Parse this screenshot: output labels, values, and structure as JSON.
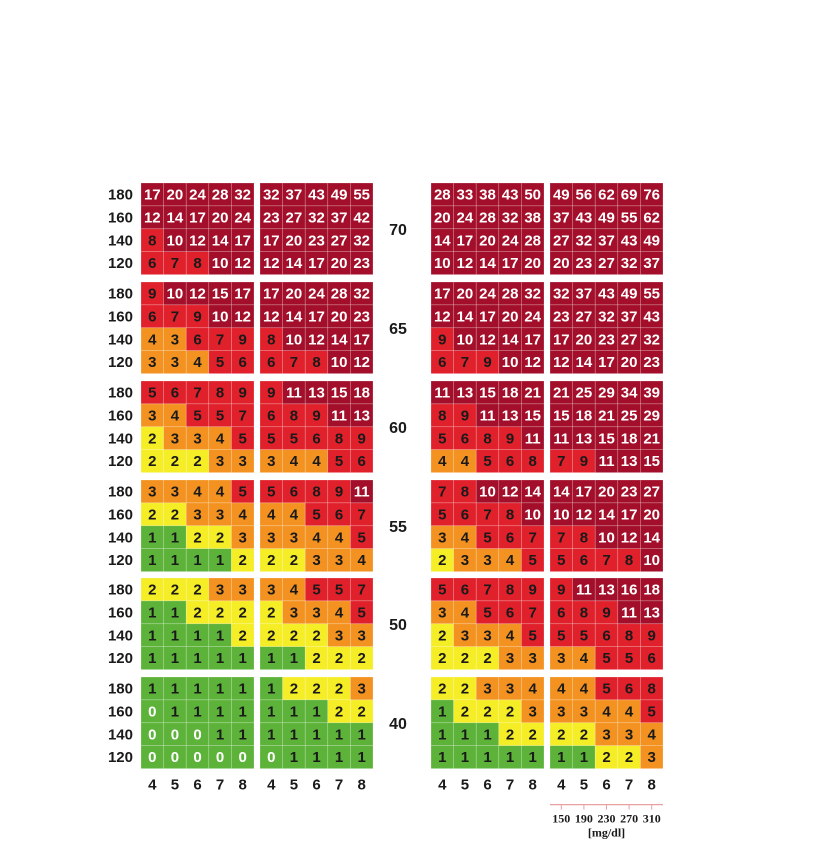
{
  "chart_data": {
    "type": "heatmap",
    "colors": {
      "green": "#5db33a",
      "yellow": "#f5ed25",
      "orange": "#f39220",
      "red": "#e0202b",
      "darkred": "#a30f2a",
      "text_dark": "#1a1a1a",
      "text_light": "#ffffff",
      "axis_line": "#e8a0a0"
    },
    "age_labels": [
      "70",
      "65",
      "60",
      "55",
      "50",
      "40"
    ],
    "bp_labels": [
      "180",
      "160",
      "140",
      "120"
    ],
    "x_labels": [
      "4",
      "5",
      "6",
      "7",
      "8"
    ],
    "chol_labels": [
      "150",
      "190",
      "230",
      "270",
      "310"
    ],
    "unit_label": "[mg/dl]",
    "panels": [
      {
        "rows": [
          {
            "age": "70",
            "grid": [
              [
                17,
                20,
                24,
                28,
                32
              ],
              [
                12,
                14,
                17,
                20,
                24
              ],
              [
                8,
                10,
                12,
                14,
                17
              ],
              [
                6,
                7,
                8,
                10,
                12
              ]
            ]
          },
          {
            "age": "65",
            "grid": [
              [
                9,
                10,
                12,
                15,
                17
              ],
              [
                6,
                7,
                9,
                10,
                12
              ],
              [
                4,
                3,
                6,
                7,
                9
              ],
              [
                3,
                3,
                4,
                5,
                6
              ]
            ]
          },
          {
            "age": "60",
            "grid": [
              [
                5,
                6,
                7,
                8,
                9
              ],
              [
                3,
                4,
                5,
                5,
                7
              ],
              [
                2,
                3,
                3,
                4,
                5
              ],
              [
                2,
                2,
                2,
                3,
                3
              ]
            ]
          },
          {
            "age": "55",
            "grid": [
              [
                3,
                3,
                4,
                4,
                5
              ],
              [
                2,
                2,
                3,
                3,
                4
              ],
              [
                1,
                1,
                2,
                2,
                3
              ],
              [
                1,
                1,
                1,
                1,
                2
              ]
            ]
          },
          {
            "age": "50",
            "grid": [
              [
                2,
                2,
                2,
                3,
                3
              ],
              [
                1,
                1,
                2,
                2,
                2
              ],
              [
                1,
                1,
                1,
                1,
                2
              ],
              [
                1,
                1,
                1,
                1,
                1
              ]
            ]
          },
          {
            "age": "40",
            "grid": [
              [
                1,
                1,
                1,
                1,
                1
              ],
              [
                0,
                1,
                1,
                1,
                1
              ],
              [
                0,
                0,
                0,
                1,
                1
              ],
              [
                0,
                0,
                0,
                0,
                0
              ]
            ]
          }
        ]
      },
      {
        "rows": [
          {
            "age": "70",
            "grid": [
              [
                32,
                37,
                43,
                49,
                55
              ],
              [
                23,
                27,
                32,
                37,
                42
              ],
              [
                17,
                20,
                23,
                27,
                32
              ],
              [
                12,
                14,
                17,
                20,
                23
              ]
            ]
          },
          {
            "age": "65",
            "grid": [
              [
                17,
                20,
                24,
                28,
                32
              ],
              [
                12,
                14,
                17,
                20,
                23
              ],
              [
                8,
                10,
                12,
                14,
                17
              ],
              [
                6,
                7,
                8,
                10,
                12
              ]
            ]
          },
          {
            "age": "60",
            "grid": [
              [
                9,
                11,
                13,
                15,
                18
              ],
              [
                6,
                8,
                9,
                11,
                13
              ],
              [
                5,
                5,
                6,
                8,
                9
              ],
              [
                3,
                4,
                4,
                5,
                6
              ]
            ]
          },
          {
            "age": "55",
            "grid": [
              [
                5,
                6,
                8,
                9,
                11
              ],
              [
                4,
                4,
                5,
                6,
                7
              ],
              [
                3,
                3,
                4,
                4,
                5
              ],
              [
                2,
                2,
                3,
                3,
                4
              ]
            ]
          },
          {
            "age": "50",
            "grid": [
              [
                3,
                4,
                5,
                5,
                7
              ],
              [
                2,
                3,
                3,
                4,
                5
              ],
              [
                2,
                2,
                2,
                3,
                3
              ],
              [
                1,
                1,
                2,
                2,
                2
              ]
            ]
          },
          {
            "age": "40",
            "grid": [
              [
                1,
                2,
                2,
                2,
                3
              ],
              [
                1,
                1,
                1,
                2,
                2
              ],
              [
                1,
                1,
                1,
                1,
                1
              ],
              [
                0,
                1,
                1,
                1,
                1
              ]
            ]
          }
        ]
      },
      {
        "rows": [
          {
            "age": "70",
            "grid": [
              [
                28,
                33,
                38,
                43,
                50
              ],
              [
                20,
                24,
                28,
                32,
                38
              ],
              [
                14,
                17,
                20,
                24,
                28
              ],
              [
                10,
                12,
                14,
                17,
                20
              ]
            ]
          },
          {
            "age": "65",
            "grid": [
              [
                17,
                20,
                24,
                28,
                32
              ],
              [
                12,
                14,
                17,
                20,
                24
              ],
              [
                9,
                10,
                12,
                14,
                17
              ],
              [
                6,
                7,
                9,
                10,
                12
              ]
            ]
          },
          {
            "age": "60",
            "grid": [
              [
                11,
                13,
                15,
                18,
                21
              ],
              [
                8,
                9,
                11,
                13,
                15
              ],
              [
                5,
                6,
                8,
                9,
                11
              ],
              [
                4,
                4,
                5,
                6,
                8
              ]
            ]
          },
          {
            "age": "55",
            "grid": [
              [
                7,
                8,
                10,
                12,
                14
              ],
              [
                5,
                6,
                7,
                8,
                10
              ],
              [
                3,
                4,
                5,
                6,
                7
              ],
              [
                2,
                3,
                3,
                4,
                5
              ]
            ]
          },
          {
            "age": "50",
            "grid": [
              [
                5,
                6,
                7,
                8,
                9
              ],
              [
                3,
                4,
                5,
                6,
                7
              ],
              [
                2,
                3,
                3,
                4,
                5
              ],
              [
                2,
                2,
                2,
                3,
                3
              ]
            ]
          },
          {
            "age": "40",
            "grid": [
              [
                2,
                2,
                3,
                3,
                4
              ],
              [
                1,
                2,
                2,
                2,
                3
              ],
              [
                1,
                1,
                1,
                2,
                2
              ],
              [
                1,
                1,
                1,
                1,
                1
              ]
            ]
          }
        ]
      },
      {
        "rows": [
          {
            "age": "70",
            "grid": [
              [
                49,
                56,
                62,
                69,
                76
              ],
              [
                37,
                43,
                49,
                55,
                62
              ],
              [
                27,
                32,
                37,
                43,
                49
              ],
              [
                20,
                23,
                27,
                32,
                37
              ]
            ]
          },
          {
            "age": "65",
            "grid": [
              [
                32,
                37,
                43,
                49,
                55
              ],
              [
                23,
                27,
                32,
                37,
                43
              ],
              [
                17,
                20,
                23,
                27,
                32
              ],
              [
                12,
                14,
                17,
                20,
                23
              ]
            ]
          },
          {
            "age": "60",
            "grid": [
              [
                21,
                25,
                29,
                34,
                39
              ],
              [
                15,
                18,
                21,
                25,
                29
              ],
              [
                11,
                13,
                15,
                18,
                21
              ],
              [
                7,
                9,
                11,
                13,
                15
              ]
            ]
          },
          {
            "age": "55",
            "grid": [
              [
                14,
                17,
                20,
                23,
                27
              ],
              [
                10,
                12,
                14,
                17,
                20
              ],
              [
                7,
                8,
                10,
                12,
                14
              ],
              [
                5,
                6,
                7,
                8,
                10
              ]
            ]
          },
          {
            "age": "50",
            "grid": [
              [
                9,
                11,
                13,
                16,
                18
              ],
              [
                6,
                8,
                9,
                11,
                13
              ],
              [
                5,
                5,
                6,
                8,
                9
              ],
              [
                3,
                4,
                5,
                5,
                6
              ]
            ]
          },
          {
            "age": "40",
            "grid": [
              [
                4,
                4,
                5,
                6,
                8
              ],
              [
                3,
                3,
                4,
                4,
                5
              ],
              [
                2,
                2,
                3,
                3,
                4
              ],
              [
                1,
                1,
                2,
                2,
                3
              ]
            ]
          }
        ]
      }
    ]
  }
}
